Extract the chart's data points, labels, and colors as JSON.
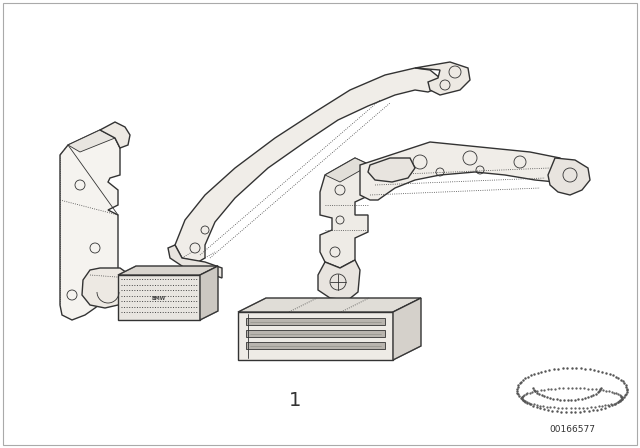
{
  "background_color": "#ffffff",
  "line_color": "#333333",
  "part_number": "1",
  "diagram_number": "00166577",
  "figsize": [
    6.4,
    4.48
  ],
  "dpi": 100,
  "lw_main": 1.0,
  "lw_thin": 0.6,
  "lw_dotted": 0.5
}
